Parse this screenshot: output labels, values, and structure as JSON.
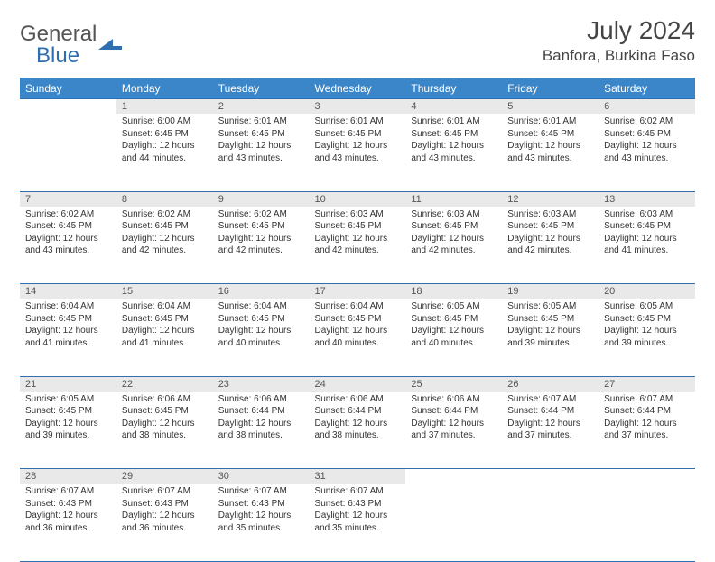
{
  "logo": {
    "text1": "General",
    "text2": "Blue",
    "icon_color": "#2f6fb0"
  },
  "title": "July 2024",
  "location": "Banfora, Burkina Faso",
  "header_bg": "#3a86c8",
  "accent": "#2f6fb0",
  "day_bg": "#e9e9e9",
  "weekdays": [
    "Sunday",
    "Monday",
    "Tuesday",
    "Wednesday",
    "Thursday",
    "Friday",
    "Saturday"
  ],
  "weeks": [
    [
      null,
      {
        "n": "1",
        "sr": "6:00 AM",
        "ss": "6:45 PM",
        "dl": "12 hours and 44 minutes."
      },
      {
        "n": "2",
        "sr": "6:01 AM",
        "ss": "6:45 PM",
        "dl": "12 hours and 43 minutes."
      },
      {
        "n": "3",
        "sr": "6:01 AM",
        "ss": "6:45 PM",
        "dl": "12 hours and 43 minutes."
      },
      {
        "n": "4",
        "sr": "6:01 AM",
        "ss": "6:45 PM",
        "dl": "12 hours and 43 minutes."
      },
      {
        "n": "5",
        "sr": "6:01 AM",
        "ss": "6:45 PM",
        "dl": "12 hours and 43 minutes."
      },
      {
        "n": "6",
        "sr": "6:02 AM",
        "ss": "6:45 PM",
        "dl": "12 hours and 43 minutes."
      }
    ],
    [
      {
        "n": "7",
        "sr": "6:02 AM",
        "ss": "6:45 PM",
        "dl": "12 hours and 43 minutes."
      },
      {
        "n": "8",
        "sr": "6:02 AM",
        "ss": "6:45 PM",
        "dl": "12 hours and 42 minutes."
      },
      {
        "n": "9",
        "sr": "6:02 AM",
        "ss": "6:45 PM",
        "dl": "12 hours and 42 minutes."
      },
      {
        "n": "10",
        "sr": "6:03 AM",
        "ss": "6:45 PM",
        "dl": "12 hours and 42 minutes."
      },
      {
        "n": "11",
        "sr": "6:03 AM",
        "ss": "6:45 PM",
        "dl": "12 hours and 42 minutes."
      },
      {
        "n": "12",
        "sr": "6:03 AM",
        "ss": "6:45 PM",
        "dl": "12 hours and 42 minutes."
      },
      {
        "n": "13",
        "sr": "6:03 AM",
        "ss": "6:45 PM",
        "dl": "12 hours and 41 minutes."
      }
    ],
    [
      {
        "n": "14",
        "sr": "6:04 AM",
        "ss": "6:45 PM",
        "dl": "12 hours and 41 minutes."
      },
      {
        "n": "15",
        "sr": "6:04 AM",
        "ss": "6:45 PM",
        "dl": "12 hours and 41 minutes."
      },
      {
        "n": "16",
        "sr": "6:04 AM",
        "ss": "6:45 PM",
        "dl": "12 hours and 40 minutes."
      },
      {
        "n": "17",
        "sr": "6:04 AM",
        "ss": "6:45 PM",
        "dl": "12 hours and 40 minutes."
      },
      {
        "n": "18",
        "sr": "6:05 AM",
        "ss": "6:45 PM",
        "dl": "12 hours and 40 minutes."
      },
      {
        "n": "19",
        "sr": "6:05 AM",
        "ss": "6:45 PM",
        "dl": "12 hours and 39 minutes."
      },
      {
        "n": "20",
        "sr": "6:05 AM",
        "ss": "6:45 PM",
        "dl": "12 hours and 39 minutes."
      }
    ],
    [
      {
        "n": "21",
        "sr": "6:05 AM",
        "ss": "6:45 PM",
        "dl": "12 hours and 39 minutes."
      },
      {
        "n": "22",
        "sr": "6:06 AM",
        "ss": "6:45 PM",
        "dl": "12 hours and 38 minutes."
      },
      {
        "n": "23",
        "sr": "6:06 AM",
        "ss": "6:44 PM",
        "dl": "12 hours and 38 minutes."
      },
      {
        "n": "24",
        "sr": "6:06 AM",
        "ss": "6:44 PM",
        "dl": "12 hours and 38 minutes."
      },
      {
        "n": "25",
        "sr": "6:06 AM",
        "ss": "6:44 PM",
        "dl": "12 hours and 37 minutes."
      },
      {
        "n": "26",
        "sr": "6:07 AM",
        "ss": "6:44 PM",
        "dl": "12 hours and 37 minutes."
      },
      {
        "n": "27",
        "sr": "6:07 AM",
        "ss": "6:44 PM",
        "dl": "12 hours and 37 minutes."
      }
    ],
    [
      {
        "n": "28",
        "sr": "6:07 AM",
        "ss": "6:43 PM",
        "dl": "12 hours and 36 minutes."
      },
      {
        "n": "29",
        "sr": "6:07 AM",
        "ss": "6:43 PM",
        "dl": "12 hours and 36 minutes."
      },
      {
        "n": "30",
        "sr": "6:07 AM",
        "ss": "6:43 PM",
        "dl": "12 hours and 35 minutes."
      },
      {
        "n": "31",
        "sr": "6:07 AM",
        "ss": "6:43 PM",
        "dl": "12 hours and 35 minutes."
      },
      null,
      null,
      null
    ]
  ],
  "labels": {
    "sunrise": "Sunrise:",
    "sunset": "Sunset:",
    "daylight": "Daylight:"
  }
}
